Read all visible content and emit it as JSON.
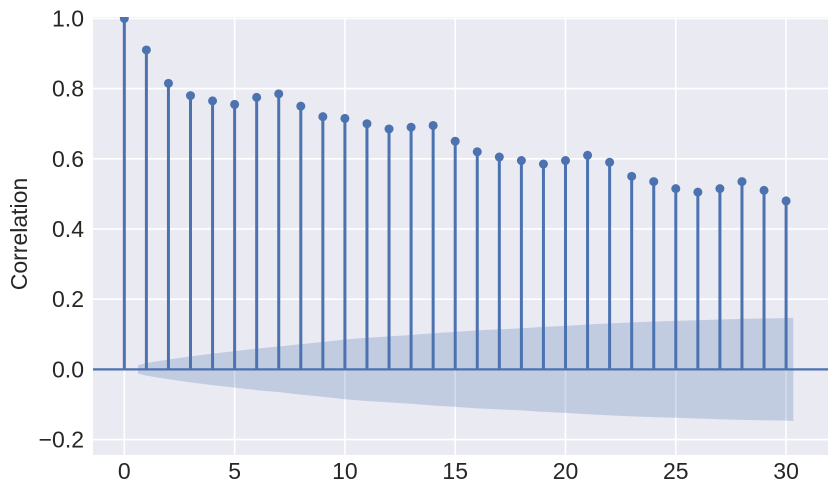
{
  "chart_data": {
    "type": "stem",
    "title": "",
    "xlabel": "",
    "ylabel": "Correlation",
    "x": [
      0,
      1,
      2,
      3,
      4,
      5,
      6,
      7,
      8,
      9,
      10,
      11,
      12,
      13,
      14,
      15,
      16,
      17,
      18,
      19,
      20,
      21,
      22,
      23,
      24,
      25,
      26,
      27,
      28,
      29,
      30
    ],
    "values": [
      1.0,
      0.91,
      0.815,
      0.78,
      0.765,
      0.755,
      0.775,
      0.785,
      0.75,
      0.72,
      0.715,
      0.7,
      0.685,
      0.69,
      0.695,
      0.65,
      0.62,
      0.605,
      0.595,
      0.585,
      0.595,
      0.61,
      0.59,
      0.55,
      0.535,
      0.515,
      0.505,
      0.515,
      0.535,
      0.51,
      0.48
    ],
    "baseline": 0.0,
    "x_ticks": [
      0,
      5,
      10,
      15,
      20,
      25,
      30
    ],
    "x_tick_labels": [
      "0",
      "5",
      "10",
      "15",
      "20",
      "25",
      "30"
    ],
    "y_ticks": [
      1.0,
      0.8,
      0.6,
      0.4,
      0.2,
      0.0,
      -0.2
    ],
    "y_tick_labels": [
      "1.0",
      "0.8",
      "0.6",
      "0.4",
      "0.2",
      "0.0",
      "−0.2"
    ],
    "xlim": [
      -1.42,
      31.9
    ],
    "ylim": [
      -0.244,
      1.004
    ],
    "grid": true,
    "legend": null,
    "confidence_band": {
      "centered_on": 0.0,
      "x": [
        0.62,
        1,
        2,
        3,
        4,
        5,
        6,
        7,
        8,
        9,
        10,
        11,
        12,
        13,
        14,
        15,
        16,
        17,
        18,
        19,
        20,
        21,
        22,
        23,
        24,
        25,
        26,
        27,
        28,
        29,
        30,
        30.33
      ],
      "half_width": [
        0.012,
        0.018,
        0.028,
        0.037,
        0.045,
        0.052,
        0.059,
        0.065,
        0.072,
        0.078,
        0.085,
        0.09,
        0.094,
        0.098,
        0.103,
        0.107,
        0.111,
        0.114,
        0.117,
        0.121,
        0.124,
        0.128,
        0.131,
        0.134,
        0.136,
        0.138,
        0.14,
        0.142,
        0.144,
        0.145,
        0.146,
        0.147
      ]
    },
    "colors": {
      "stem": "#4C72B0",
      "marker": "#4C72B0",
      "zero_line": "#4C72B0",
      "band_fill": "#4C72B0",
      "band_opacity": 0.25,
      "axes_background": "#EAEAF2",
      "grid": "#FFFFFF",
      "figure_background": "#FFFFFF",
      "tick_text": "#262626"
    }
  }
}
